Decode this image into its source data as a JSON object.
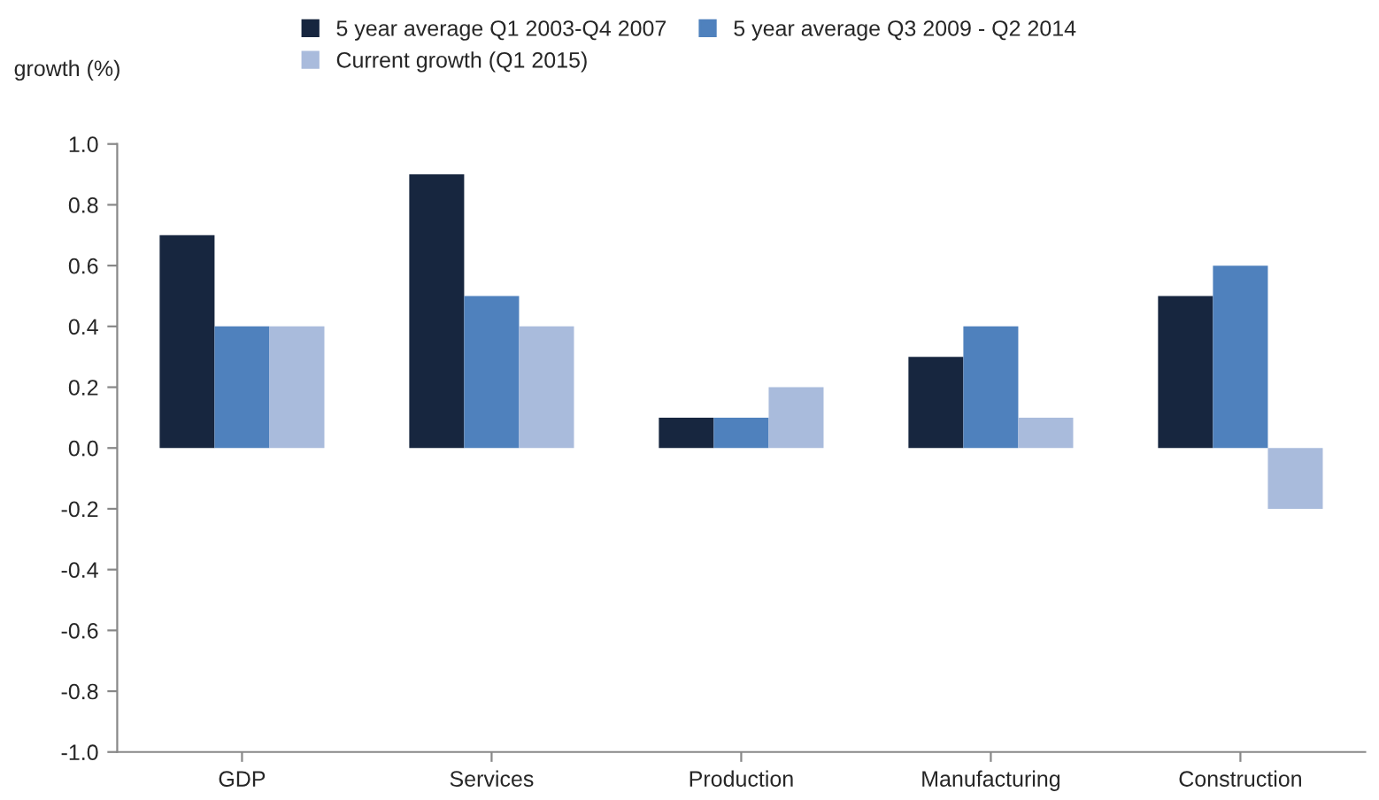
{
  "chart_data": {
    "type": "bar",
    "ylabel": "growth (%)",
    "categories": [
      "GDP",
      "Services",
      "Production",
      "Manufacturing",
      "Construction"
    ],
    "series": [
      {
        "name": "5 year average Q1 2003-Q4 2007",
        "color": "#17263f",
        "values": [
          0.7,
          0.9,
          0.1,
          0.3,
          0.5
        ]
      },
      {
        "name": "5 year average Q3 2009 - Q2 2014",
        "color": "#4f81bd",
        "values": [
          0.4,
          0.5,
          0.1,
          0.4,
          0.6
        ]
      },
      {
        "name": "Current growth (Q1 2015)",
        "color": "#a9bbdc",
        "values": [
          0.4,
          0.4,
          0.2,
          0.1,
          -0.2
        ]
      }
    ],
    "ylim": [
      -1.0,
      1.0
    ],
    "yticks": [
      {
        "value": -1.0,
        "label": "-1.0"
      },
      {
        "value": -0.8,
        "label": "-0.8"
      },
      {
        "value": -0.6,
        "label": "-0.6"
      },
      {
        "value": -0.4,
        "label": "-0.4"
      },
      {
        "value": -0.2,
        "label": "-0.2"
      },
      {
        "value": 0.0,
        "label": "0.0"
      },
      {
        "value": 0.2,
        "label": "0.2"
      },
      {
        "value": 0.4,
        "label": "0.4"
      },
      {
        "value": 0.6,
        "label": "0.6"
      },
      {
        "value": 0.8,
        "label": "0.8"
      },
      {
        "value": 1.0,
        "label": "1.0"
      }
    ],
    "grid": false,
    "legend": "top"
  }
}
